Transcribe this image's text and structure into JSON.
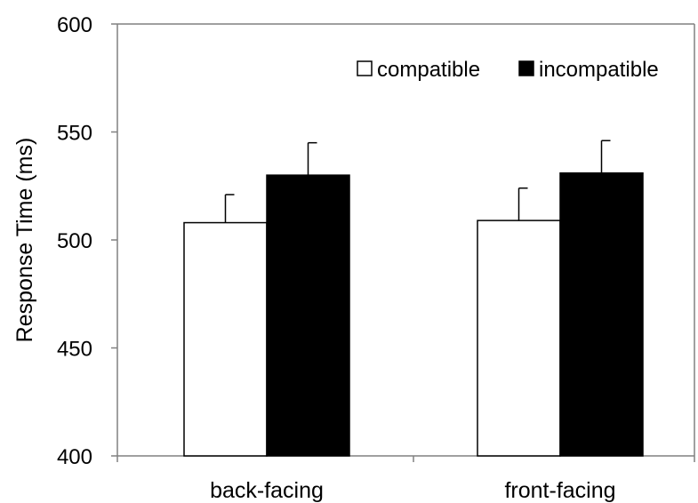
{
  "chart_data": {
    "type": "bar",
    "title": "",
    "xlabel": "",
    "ylabel": "Response Time (ms)",
    "ylim": [
      400,
      600
    ],
    "yticks": [
      "400",
      "450",
      "500",
      "550",
      "600"
    ],
    "categories": [
      "back-facing",
      "front-facing"
    ],
    "series": [
      {
        "name": "compatible",
        "values": [
          508,
          509
        ],
        "errors": [
          13,
          15
        ],
        "color": "#ffffff"
      },
      {
        "name": "incompatible",
        "values": [
          530,
          531
        ],
        "errors": [
          15,
          15
        ],
        "color": "#000000"
      }
    ],
    "grid": false,
    "legend_position": "top-right"
  }
}
